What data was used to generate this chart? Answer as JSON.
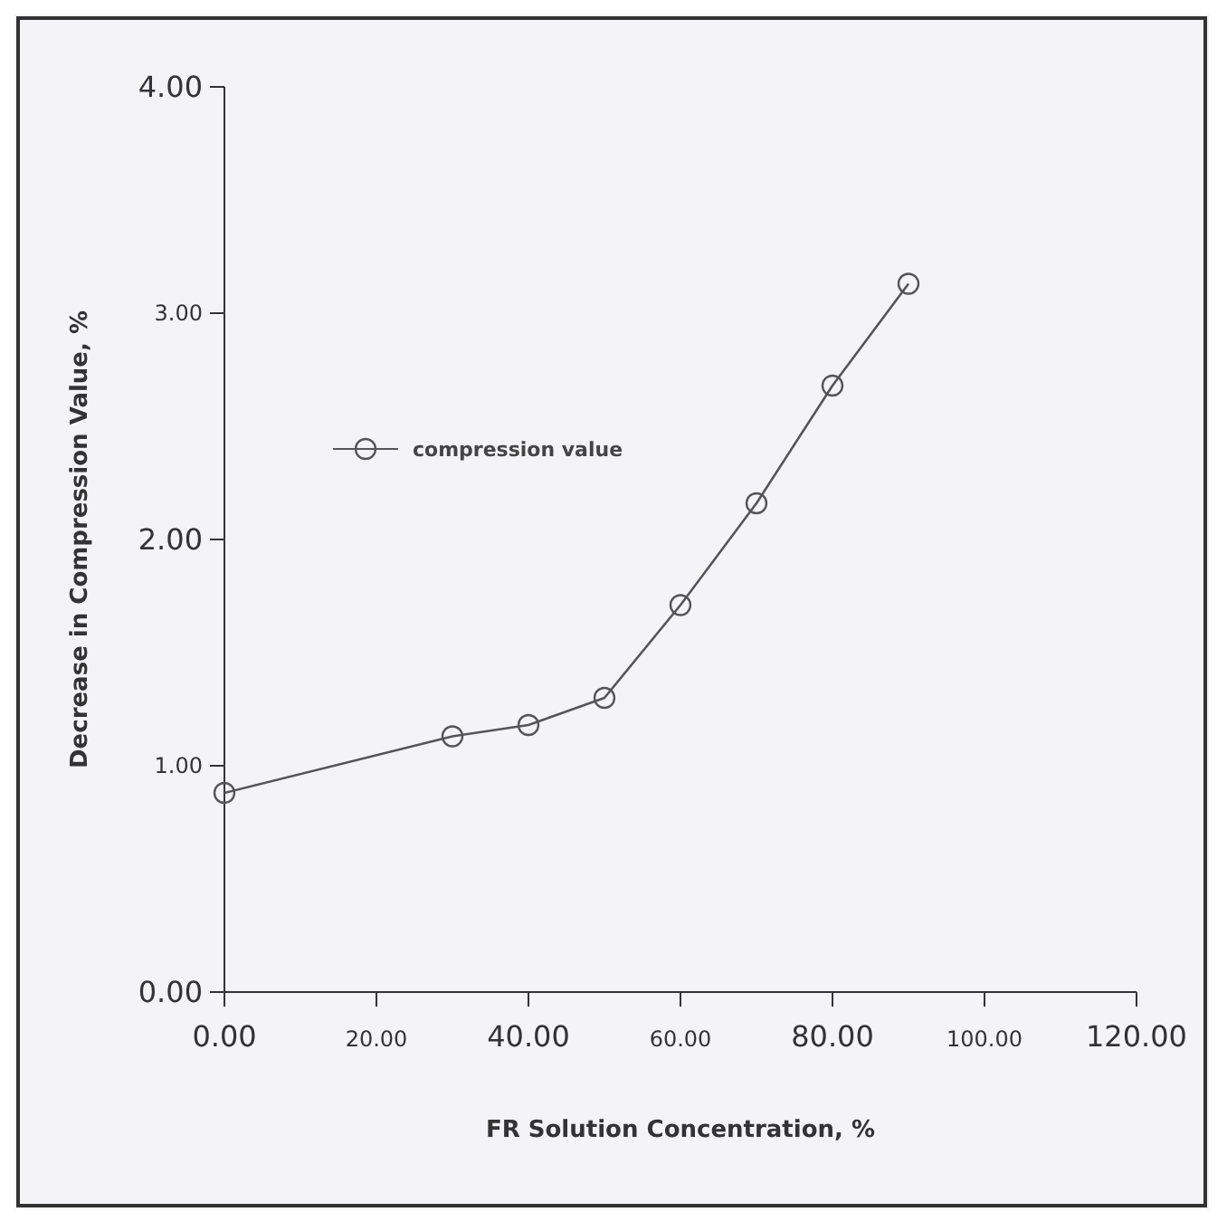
{
  "chart_data": {
    "type": "line",
    "xlabel": "FR Solution Concentration, %",
    "ylabel": "Decrease in Compression Value, %",
    "x": [
      0,
      30,
      40,
      50,
      60,
      70,
      80,
      90
    ],
    "series": [
      {
        "name": "compression value",
        "color": "#555555",
        "values": [
          0.88,
          1.13,
          1.18,
          1.3,
          1.71,
          2.16,
          2.68,
          3.13
        ]
      }
    ],
    "xlim": [
      0,
      120
    ],
    "xticks": [
      {
        "value": 0,
        "label": "0.00"
      },
      {
        "value": 20,
        "label": "20.00"
      },
      {
        "value": 40,
        "label": "40.00"
      },
      {
        "value": 60,
        "label": "60.00"
      },
      {
        "value": 80,
        "label": "80.00"
      },
      {
        "value": 100,
        "label": "100.00"
      },
      {
        "value": 120,
        "label": "120.00"
      }
    ],
    "ylim": [
      0,
      4
    ],
    "yticks": [
      {
        "value": 0,
        "label": "0.00"
      },
      {
        "value": 1,
        "label": "1.00"
      },
      {
        "value": 2,
        "label": "2.00"
      },
      {
        "value": 3,
        "label": "3.00"
      },
      {
        "value": 4,
        "label": "4.00"
      }
    ],
    "legend": "top left",
    "marker": "circle",
    "line_style": "solid",
    "grid": false
  }
}
